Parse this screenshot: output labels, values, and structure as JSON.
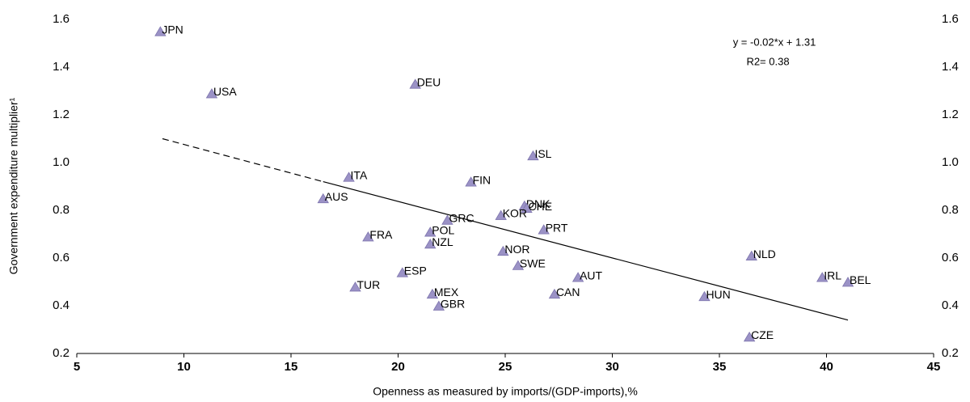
{
  "chart_data": {
    "type": "scatter",
    "x_label": "Openness as measured by imports/(GDP-imports),%",
    "y_label": "Government expenditure multiplier¹",
    "annotations": [
      "y = -0.02*x + 1.31",
      "R2= 0.38"
    ],
    "categories": [
      "JPN",
      "USA",
      "DEU",
      "ISL",
      "ITA",
      "FIN",
      "AUS",
      "DNK",
      "CHE",
      "KOR",
      "GRC",
      "PRT",
      "POL",
      "FRA",
      "NZL",
      "NOR",
      "NLD",
      "SWE",
      "ESP",
      "AUT",
      "IRL",
      "BEL",
      "TUR",
      "MEX",
      "CAN",
      "HUN",
      "GBR",
      "CZE"
    ],
    "x": [
      8.9,
      11.3,
      20.8,
      26.3,
      17.7,
      23.4,
      16.5,
      25.9,
      26.0,
      24.8,
      22.3,
      26.8,
      21.5,
      18.6,
      21.5,
      24.9,
      36.5,
      25.6,
      20.2,
      28.4,
      39.8,
      41.0,
      18.0,
      21.6,
      27.3,
      34.3,
      21.9,
      36.4
    ],
    "values": [
      1.55,
      1.29,
      1.33,
      1.03,
      0.94,
      0.92,
      0.85,
      0.82,
      0.81,
      0.78,
      0.76,
      0.72,
      0.71,
      0.69,
      0.66,
      0.63,
      0.61,
      0.57,
      0.54,
      0.52,
      0.52,
      0.5,
      0.48,
      0.45,
      0.45,
      0.44,
      0.4,
      0.27
    ],
    "color": "#9b92c6",
    "trend_line": {
      "x": [
        9,
        16.5,
        41
      ],
      "y": [
        1.1,
        0.92,
        0.34
      ],
      "color": "#000000"
    },
    "xlim": [
      5,
      45
    ],
    "xticks": [
      5,
      10,
      15,
      20,
      25,
      30,
      35,
      40,
      45
    ],
    "ylim": [
      0.2,
      1.6
    ],
    "yticks": [
      0.2,
      0.4,
      0.6,
      0.8,
      {
        "value": 1,
        "label": "1.0"
      },
      1.2,
      1.4,
      1.6
    ]
  }
}
